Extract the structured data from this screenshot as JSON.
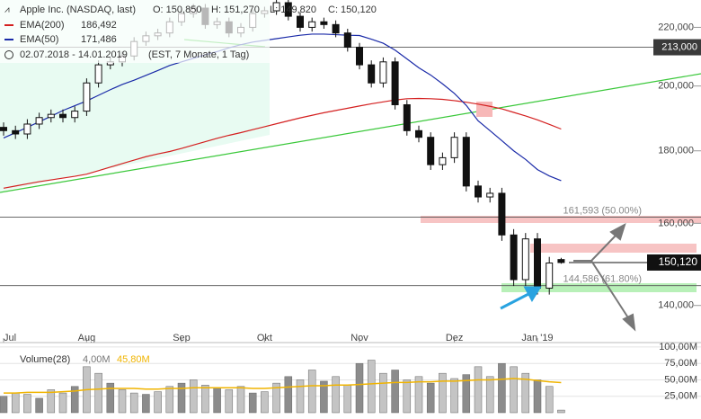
{
  "header": {
    "title": "Apple Inc. (NASDAQ, last)",
    "ohlc": [
      "O: 150,850",
      "H: 151,270",
      "L: 149,820",
      "C: 150,120"
    ],
    "range": "02.07.2018 - 14.01.2019",
    "range_note": "(EST, 7 Monate, 1 Tag)"
  },
  "chart_data": {
    "type": "candlestick",
    "log": true,
    "categories": [
      "Jul",
      null,
      null,
      null,
      null,
      null,
      null,
      "Aug",
      null,
      null,
      null,
      null,
      null,
      null,
      null,
      "Sep",
      null,
      null,
      null,
      null,
      null,
      null,
      "Okt",
      null,
      null,
      null,
      null,
      null,
      null,
      null,
      "Nov",
      null,
      null,
      null,
      null,
      null,
      null,
      null,
      "Dez",
      null,
      null,
      null,
      null,
      null,
      null,
      "Jan '19",
      null,
      null
    ],
    "open": [
      187000,
      186000,
      185000,
      188000,
      190000,
      191000,
      190000,
      192000,
      201000,
      207000,
      208000,
      210000,
      215000,
      217000,
      218000,
      222000,
      225000,
      227000,
      221000,
      222000,
      218000,
      220000,
      225000,
      226000,
      229000,
      224000,
      220000,
      222000,
      221000,
      218000,
      213000,
      207000,
      201000,
      208000,
      194000,
      186000,
      184000,
      176000,
      178000,
      184000,
      170000,
      167000,
      168000,
      157000,
      146000,
      156000,
      144000,
      150850
    ],
    "high": [
      188500,
      187500,
      189500,
      191500,
      192500,
      192500,
      193500,
      202500,
      208500,
      209500,
      211500,
      216500,
      218500,
      219500,
      223500,
      226500,
      228500,
      228500,
      223500,
      223500,
      221500,
      226500,
      227500,
      230500,
      230500,
      225500,
      223500,
      223500,
      222500,
      219500,
      214500,
      208500,
      209500,
      209500,
      195500,
      187500,
      185500,
      179500,
      185500,
      185500,
      171500,
      169500,
      169500,
      158500,
      157500,
      157500,
      151500,
      151270
    ],
    "low": [
      184500,
      183500,
      183500,
      186500,
      188500,
      188500,
      188500,
      190500,
      199500,
      205500,
      206500,
      208500,
      213500,
      215500,
      216500,
      220500,
      223500,
      219500,
      219500,
      216500,
      216500,
      218500,
      223500,
      224500,
      222500,
      218500,
      218500,
      219500,
      216500,
      211500,
      205500,
      199500,
      199500,
      192500,
      184500,
      182500,
      174500,
      174500,
      176500,
      168500,
      165500,
      165500,
      155500,
      144500,
      144500,
      142500,
      142500,
      149820
    ],
    "close": [
      186000,
      185000,
      188000,
      190000,
      191000,
      190000,
      192000,
      201000,
      207000,
      208000,
      210000,
      215000,
      217000,
      218000,
      222000,
      225000,
      227000,
      221000,
      222000,
      218000,
      220000,
      225000,
      226000,
      229000,
      224000,
      220000,
      222000,
      221000,
      218000,
      213000,
      207000,
      201000,
      208000,
      194000,
      186000,
      184000,
      176000,
      178000,
      184000,
      170000,
      167000,
      168000,
      157000,
      146000,
      156000,
      144000,
      150000,
      150120
    ],
    "last_label": "150,120",
    "series": [
      {
        "name": "EMA(200)",
        "value_label": "186,492",
        "color": "#d42020",
        "values": [
          169400,
          170000,
          170600,
          171200,
          171700,
          172200,
          172700,
          173300,
          174300,
          175300,
          176300,
          177300,
          178300,
          179100,
          179800,
          180700,
          181700,
          182700,
          183700,
          184600,
          185400,
          186300,
          187200,
          188100,
          189000,
          189900,
          190700,
          191500,
          192200,
          192900,
          193600,
          194300,
          194900,
          195500,
          195900,
          196000,
          195900,
          195700,
          195300,
          194800,
          194200,
          193500,
          192700,
          191600,
          190500,
          189300,
          187900,
          186492
        ]
      },
      {
        "name": "EMA(50)",
        "value_label": "171,486",
        "color": "#1a2aa8",
        "values": [
          183800,
          185400,
          187000,
          188700,
          190400,
          192200,
          193700,
          195200,
          197000,
          198800,
          200500,
          201900,
          203500,
          205100,
          206800,
          208000,
          209200,
          210400,
          211500,
          212800,
          213900,
          214800,
          215400,
          216000,
          216600,
          217200,
          217600,
          217600,
          217400,
          217200,
          217100,
          215800,
          214400,
          212000,
          209000,
          206000,
          203600,
          200700,
          197600,
          193800,
          189000,
          186000,
          183000,
          180000,
          177500,
          174600,
          172800,
          171486
        ]
      }
    ],
    "levels": [
      {
        "value": 213000,
        "label": "213,000"
      },
      {
        "value": 161593,
        "label": "161,593 (50.00%)"
      },
      {
        "value": 144586,
        "label": "144,586 (61.80%)"
      }
    ],
    "ylim": [
      132000,
      230000
    ],
    "yticks": [
      {
        "value": 140000,
        "label": "140,000"
      },
      {
        "value": 160000,
        "label": "160,000"
      },
      {
        "value": 180000,
        "label": "180,000"
      },
      {
        "value": 200000,
        "label": "200,000"
      },
      {
        "value": 220000,
        "label": "220,000"
      }
    ],
    "volume": {
      "name": "Volume(28)",
      "legend_values": [
        "4,00M",
        "45,80M"
      ],
      "ma_color": "#f0b400",
      "values": [
        25000000,
        30000000,
        28000000,
        22000000,
        35000000,
        30000000,
        40000000,
        70000000,
        60000000,
        45000000,
        35000000,
        30000000,
        28000000,
        32000000,
        40000000,
        45000000,
        50000000,
        42000000,
        38000000,
        35000000,
        40000000,
        30000000,
        32000000,
        45000000,
        55000000,
        50000000,
        65000000,
        48000000,
        55000000,
        42000000,
        75000000,
        80000000,
        60000000,
        65000000,
        50000000,
        55000000,
        45000000,
        60000000,
        52000000,
        58000000,
        70000000,
        55000000,
        75000000,
        70000000,
        60000000,
        50000000,
        40000000,
        4000000
      ],
      "ma": [
        30000000,
        30000000,
        31000000,
        31000000,
        31000000,
        32000000,
        33000000,
        35000000,
        36000000,
        37000000,
        37000000,
        37000000,
        36000000,
        36000000,
        37000000,
        37000000,
        38000000,
        38000000,
        38000000,
        38000000,
        38000000,
        37000000,
        37000000,
        38000000,
        39000000,
        40000000,
        41000000,
        41000000,
        42000000,
        42000000,
        43000000,
        44000000,
        45000000,
        46000000,
        46000000,
        47000000,
        47000000,
        48000000,
        48000000,
        49000000,
        50000000,
        50000000,
        51000000,
        52000000,
        51000000,
        49000000,
        47000000,
        45800000
      ],
      "ylim": [
        0,
        104000000
      ],
      "yticks": [
        {
          "value": 25000000,
          "label": "25,00M"
        },
        {
          "value": 50000000,
          "label": "50,00M"
        },
        {
          "value": 75000000,
          "label": "75,00M"
        },
        {
          "value": 100000000,
          "label": "100,00M"
        }
      ]
    }
  }
}
